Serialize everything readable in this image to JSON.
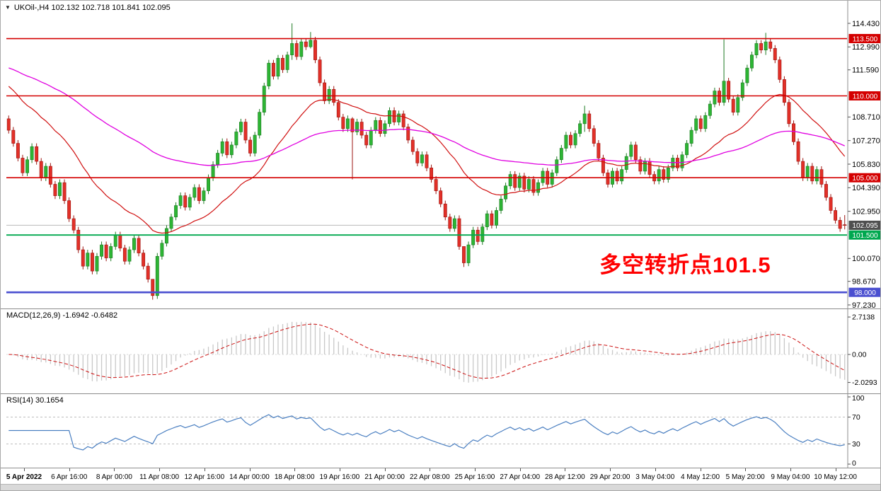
{
  "header": {
    "marker": "▼",
    "symbol_info": "UKOil-,H4 102.132 102.718 101.841 102.095"
  },
  "annotation": {
    "text": "多空转折点101.5",
    "color": "#ff0000"
  },
  "colors": {
    "up": "#2db534",
    "up_stroke": "#1d7a22",
    "down": "#e23028",
    "down_stroke": "#9c1410",
    "hist": "#c8c8c8",
    "macd_signal": "#cc1111",
    "rsi_line": "#4a7fc1",
    "level_dash": "#bdbdbd",
    "axis_line": "#8c8c8c",
    "current_line": "#b8b8b8"
  },
  "axis": {
    "price_ticks": [
      114.43,
      112.99,
      111.59,
      108.71,
      107.27,
      105.83,
      104.39,
      102.95,
      100.07,
      98.67,
      97.23
    ]
  },
  "time_axis": {
    "labels": [
      "5 Apr 2022",
      "6 Apr 16:00",
      "8 Apr 00:00",
      "11 Apr 08:00",
      "12 Apr 16:00",
      "14 Apr 00:00",
      "18 Apr 08:00",
      "19 Apr 16:00",
      "21 Apr 00:00",
      "22 Apr 08:00",
      "25 Apr 16:00",
      "27 Apr 04:00",
      "28 Apr 12:00",
      "29 Apr 20:00",
      "3 May 04:00",
      "4 May 12:00",
      "5 May 20:00",
      "9 May 04:00",
      "10 May 12:00"
    ]
  },
  "chart_data": [
    {
      "type": "candlestick",
      "title": "UKOil- H4",
      "symbol": "UKOil-",
      "timeframe": "H4",
      "last_bar": {
        "open": 102.132,
        "high": 102.718,
        "low": 101.841,
        "close": 102.095
      },
      "ylim": [
        97.23,
        114.43
      ],
      "closes": [
        107.9,
        107.1,
        106.2,
        105.3,
        106.1,
        106.9,
        106.0,
        105.0,
        105.7,
        104.6,
        103.9,
        104.7,
        103.6,
        102.5,
        101.8,
        100.6,
        99.6,
        100.4,
        99.3,
        100.2,
        100.9,
        100.1,
        100.8,
        101.5,
        100.7,
        99.9,
        100.6,
        101.3,
        100.4,
        99.6,
        98.8,
        97.8,
        100.2,
        101.0,
        101.9,
        102.6,
        103.3,
        103.9,
        103.2,
        103.8,
        104.4,
        103.6,
        104.2,
        105.0,
        105.8,
        106.5,
        107.2,
        106.4,
        107.0,
        107.8,
        108.4,
        107.3,
        106.5,
        107.6,
        109.0,
        110.6,
        112.0,
        111.2,
        112.3,
        111.6,
        112.5,
        113.2,
        112.4,
        113.3,
        113.0,
        113.4,
        112.2,
        110.8,
        109.7,
        110.4,
        109.6,
        108.7,
        108.0,
        108.6,
        107.8,
        108.4,
        107.6,
        107.0,
        107.9,
        108.5,
        107.7,
        108.3,
        109.1,
        108.4,
        108.9,
        108.1,
        107.3,
        106.6,
        105.9,
        106.4,
        105.6,
        104.9,
        104.2,
        103.4,
        102.6,
        101.9,
        102.5,
        100.8,
        99.8,
        100.9,
        101.8,
        101.1,
        102.0,
        102.8,
        102.1,
        103.0,
        103.7,
        104.5,
        105.2,
        104.4,
        105.1,
        104.3,
        104.9,
        104.1,
        104.7,
        105.4,
        104.6,
        105.3,
        106.1,
        106.8,
        107.6,
        107.0,
        107.7,
        108.3,
        108.9,
        108.0,
        107.1,
        106.2,
        105.3,
        104.6,
        105.4,
        104.8,
        105.5,
        106.3,
        107.0,
        106.1,
        105.4,
        106.0,
        105.2,
        104.8,
        105.5,
        104.9,
        105.6,
        106.2,
        105.6,
        106.4,
        107.1,
        107.9,
        108.6,
        108.0,
        108.8,
        109.5,
        110.3,
        109.6,
        110.9,
        109.8,
        109.0,
        109.9,
        110.8,
        111.7,
        112.5,
        113.2,
        112.8,
        113.3,
        112.9,
        112.2,
        111.0,
        109.6,
        108.3,
        107.2,
        106.0,
        105.0,
        105.7,
        104.8,
        105.5,
        104.6,
        103.8,
        103.0,
        102.4,
        101.9,
        102.095
      ],
      "open_overrides": {
        "0": 108.6,
        "180": 102.132
      },
      "wick_overrides": {
        "31": [
          98.3,
          97.55
        ],
        "61": [
          114.43,
          112.2
        ],
        "65": [
          113.9,
          112.9
        ],
        "74": [
          108.7,
          104.9
        ],
        "98": [
          100.3,
          99.55
        ],
        "124": [
          109.4,
          107.8
        ],
        "154": [
          113.45,
          109.4
        ],
        "163": [
          113.85,
          112.5
        ],
        "180": [
          102.718,
          101.841
        ]
      },
      "overlays": [
        {
          "name": "ma-fast-red",
          "type": "ema",
          "period": 26,
          "seed": 110.8,
          "color": "#d01010",
          "width": 1.2
        },
        {
          "name": "ma-slow-magenta",
          "type": "ema",
          "period": 85,
          "seed": 111.8,
          "color": "#e000e0",
          "width": 1.3
        }
      ],
      "hlines": [
        {
          "value": 113.5,
          "label": "113.500",
          "color": "#d40000",
          "width": 1.6
        },
        {
          "value": 110.0,
          "label": "110.000",
          "color": "#d40000",
          "width": 1.6
        },
        {
          "value": 105.0,
          "label": "105.000",
          "color": "#d40000",
          "width": 1.6
        },
        {
          "value": 101.5,
          "label": "101.500",
          "color": "#00a84f",
          "width": 1.8
        },
        {
          "value": 98.0,
          "label": "98.000",
          "color": "#4a4fd0",
          "width": 2.6
        }
      ],
      "current_price": {
        "value": 102.095,
        "label": "102.095",
        "badge_color": "#4f4f4f"
      }
    },
    {
      "type": "macd-histogram",
      "label": "MACD(12,26,9) -1.6942 -0.6482",
      "params": {
        "fast": 12,
        "slow": 26,
        "signal": 9
      },
      "last_values": {
        "macd": -1.6942,
        "signal": -0.6482
      },
      "y_ticks": [
        {
          "label": "2.7138",
          "value": 2.7138
        },
        {
          "label": "0.00",
          "value": 0
        },
        {
          "label": "-2.0293",
          "value": -2.0293
        }
      ]
    },
    {
      "type": "line",
      "label": "RSI(14) 30.1654",
      "period": 14,
      "last_value": 30.1654,
      "levels": [
        70,
        30
      ],
      "ylim": [
        0,
        100
      ],
      "y_ticks": [
        {
          "label": "100",
          "value": 100
        },
        {
          "label": "70",
          "value": 70
        },
        {
          "label": "30",
          "value": 30
        },
        {
          "label": "0",
          "value": 0
        }
      ]
    }
  ]
}
